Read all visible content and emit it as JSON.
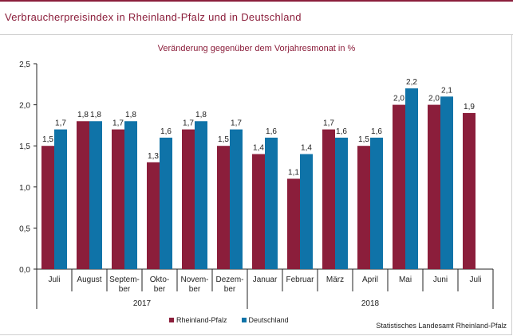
{
  "header": {
    "title": "Verbraucherpreisindex in Rheinland-Pfalz und in Deutschland"
  },
  "chart_data": {
    "type": "bar",
    "title": "Veränderung gegenüber dem Vorjahresmonat in %",
    "categories": [
      [
        "Juli"
      ],
      [
        "August"
      ],
      [
        "Septem-",
        "ber"
      ],
      [
        "Okto-",
        "ber"
      ],
      [
        "Novem-",
        "ber"
      ],
      [
        "Dezem-",
        "ber"
      ],
      [
        "Januar"
      ],
      [
        "Februar"
      ],
      [
        "März"
      ],
      [
        "April"
      ],
      [
        "Mai"
      ],
      [
        "Juni"
      ],
      [
        "Juli"
      ]
    ],
    "year_groups": [
      {
        "label": "2017",
        "start": 0,
        "end": 5
      },
      {
        "label": "2018",
        "start": 6,
        "end": 12
      }
    ],
    "series": [
      {
        "name": "Rheinland-Pfalz",
        "color": "#8b1e3b",
        "values": [
          1.5,
          1.8,
          1.7,
          1.3,
          1.7,
          1.5,
          1.4,
          1.1,
          1.7,
          1.5,
          2.0,
          2.0,
          1.9
        ]
      },
      {
        "name": "Deutschland",
        "color": "#0f73a8",
        "values": [
          1.7,
          1.8,
          1.8,
          1.6,
          1.8,
          1.7,
          1.6,
          1.4,
          1.6,
          1.6,
          2.2,
          2.1,
          null
        ]
      }
    ],
    "ylim": [
      0,
      2.5
    ],
    "yticks": [
      0,
      0.5,
      1.0,
      1.5,
      2.0,
      2.5
    ],
    "ytick_labels": [
      "0,0",
      "0,5",
      "1,0",
      "1,5",
      "2,0",
      "2,5"
    ],
    "grid": false,
    "legend_position": "bottom"
  },
  "legend": {
    "items": [
      {
        "label": "Rheinland-Pfalz",
        "color": "#8b1e3b"
      },
      {
        "label": "Deutschland",
        "color": "#0f73a8"
      }
    ]
  },
  "footer": {
    "source": "Statistisches Landesamt Rheinland-Pfalz"
  }
}
